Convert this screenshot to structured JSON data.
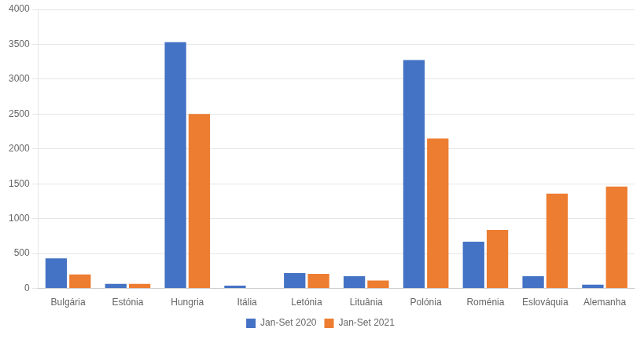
{
  "chart_data": {
    "type": "bar",
    "categories": [
      "Bulgária",
      "Estónia",
      "Hungria",
      "Itália",
      "Letónia",
      "Lituânia",
      "Polónia",
      "Roménia",
      "Eslováquia",
      "Alemanha"
    ],
    "series": [
      {
        "name": "Jan-Set 2020",
        "color": "#4472C4",
        "values": [
          430,
          65,
          3530,
          40,
          220,
          175,
          3275,
          670,
          175,
          55
        ]
      },
      {
        "name": "Jan-Set 2021",
        "color": "#ED7D31",
        "values": [
          200,
          65,
          2500,
          0,
          210,
          115,
          2150,
          840,
          1360,
          1460
        ]
      }
    ],
    "ylim": [
      0,
      4000
    ],
    "yticks": [
      0,
      500,
      1000,
      1500,
      2000,
      2500,
      3000,
      3500,
      4000
    ],
    "grid": true,
    "legend": "bottom"
  }
}
